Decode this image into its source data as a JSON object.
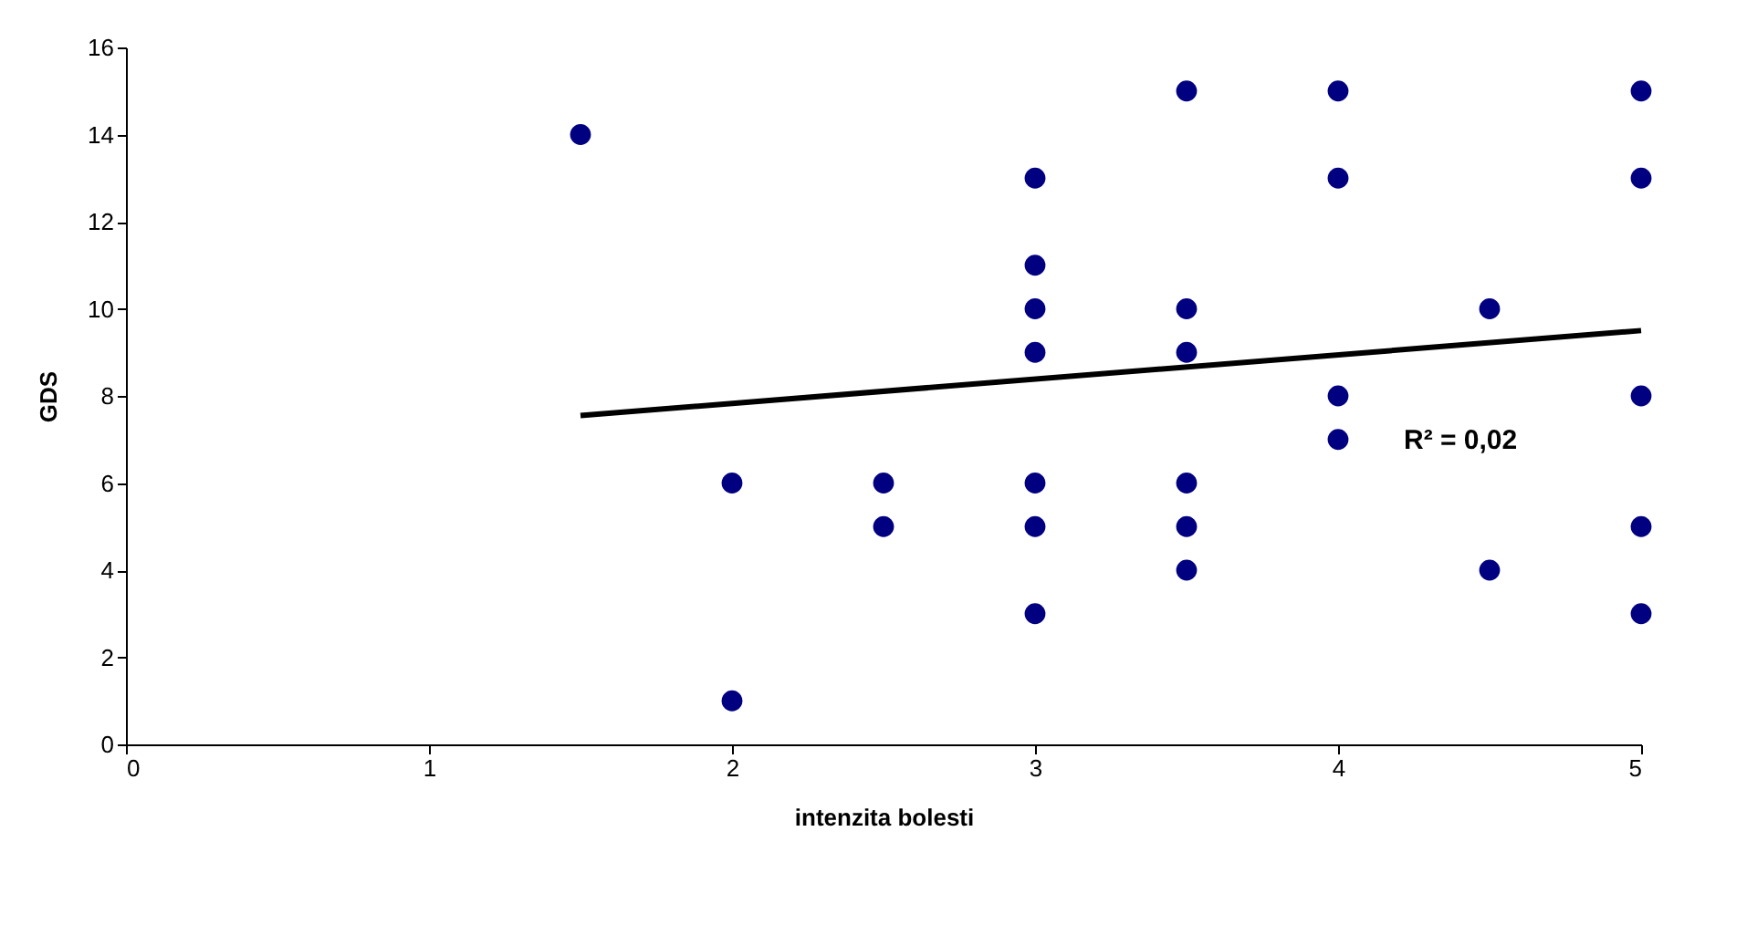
{
  "chart_data": {
    "type": "scatter",
    "xlabel": "intenzita bolesti",
    "ylabel": "GDS",
    "xlim": [
      0,
      5
    ],
    "xticks": [
      0,
      1,
      2,
      3,
      4,
      5
    ],
    "ylim": [
      0,
      16
    ],
    "yticks": [
      0,
      2,
      4,
      6,
      8,
      10,
      12,
      14,
      16
    ],
    "grid": false,
    "series": [
      {
        "marker": "circle",
        "color": "#000080",
        "x": [
          1.5,
          2,
          2,
          2.5,
          2.5,
          3,
          3,
          3,
          3,
          3,
          3,
          3,
          3.5,
          3.5,
          3.5,
          3.5,
          3.5,
          3.5,
          4,
          4,
          4,
          4,
          4.5,
          4.5,
          5,
          5,
          5,
          5,
          5
        ],
        "values": [
          14,
          6,
          1,
          6,
          5,
          13,
          11,
          10,
          9,
          6,
          5,
          3,
          15,
          10,
          9,
          6,
          5,
          4,
          15,
          13,
          8,
          7,
          10,
          4,
          15,
          13,
          8,
          5,
          3
        ]
      },
      {
        "type": "line",
        "marker": "none",
        "color": "#000000",
        "x": [
          1.5,
          5
        ],
        "values": [
          7.55,
          9.5
        ]
      }
    ],
    "annotations": [
      "R² = 0,02"
    ]
  }
}
